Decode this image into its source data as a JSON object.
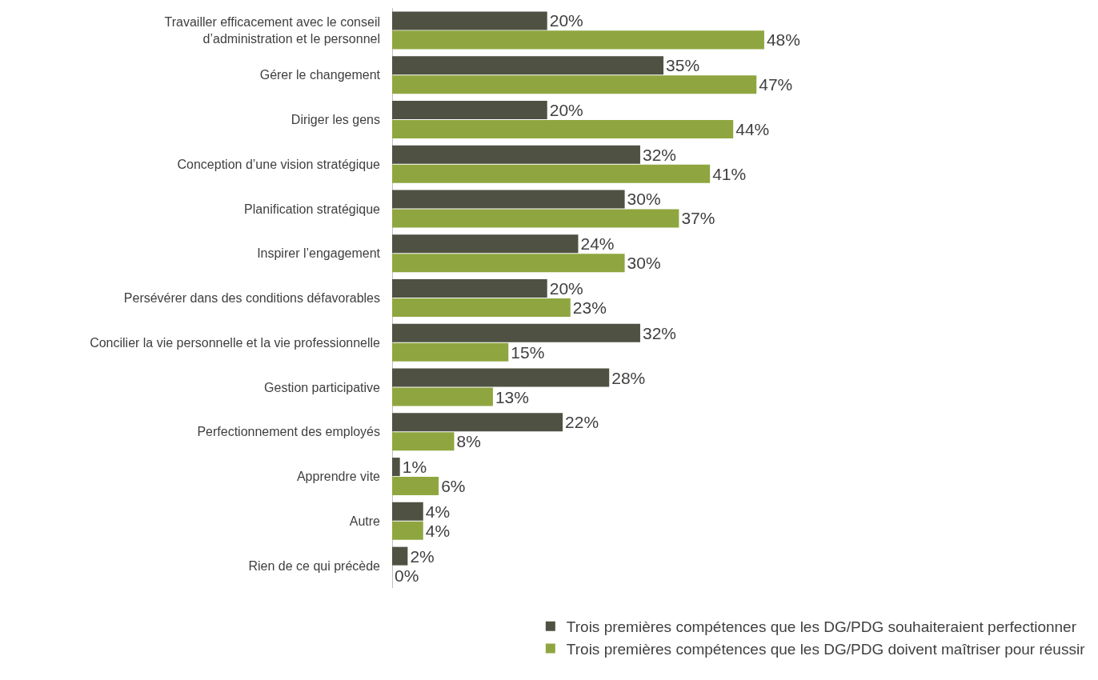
{
  "chart_data": {
    "type": "bar",
    "orientation": "horizontal",
    "categories": [
      "Travailler efficacement avec le conseil\nd’administration et le personnel",
      "Gérer le changement",
      "Diriger les gens",
      "Conception d’une vision stratégique",
      "Planification stratégique",
      "Inspirer l’engagement",
      "Persévérer dans des conditions défavorables",
      "Concilier la vie personnelle et la vie professionnelle",
      "Gestion participative",
      "Perfectionnement des employés",
      "Apprendre vite",
      "Autre",
      "Rien de ce qui précède"
    ],
    "series": [
      {
        "name": "Trois premières compétences que les DG/PDG souhaiteraient perfectionner",
        "color": "#4f5142",
        "values": [
          20,
          35,
          20,
          32,
          30,
          24,
          20,
          32,
          28,
          22,
          1,
          4,
          2
        ],
        "value_labels": [
          "20%",
          "35%",
          "20%",
          "32%",
          "30%",
          "24%",
          "20%",
          "32%",
          "28%",
          "22%",
          "1%",
          "4%",
          "2%"
        ]
      },
      {
        "name": "Trois premières compétences que les DG/PDG doivent maîtriser pour réussir",
        "color": "#8fa640",
        "values": [
          48,
          47,
          44,
          41,
          37,
          30,
          23,
          15,
          13,
          8,
          6,
          4,
          0
        ],
        "value_labels": [
          "48%",
          "47%",
          "44%",
          "41%",
          "37%",
          "30%",
          "23%",
          "15%",
          "13%",
          "8%",
          "6%",
          "4%",
          "0%"
        ]
      }
    ],
    "legend": "bottom",
    "grid": false,
    "tick_labels": "y"
  }
}
